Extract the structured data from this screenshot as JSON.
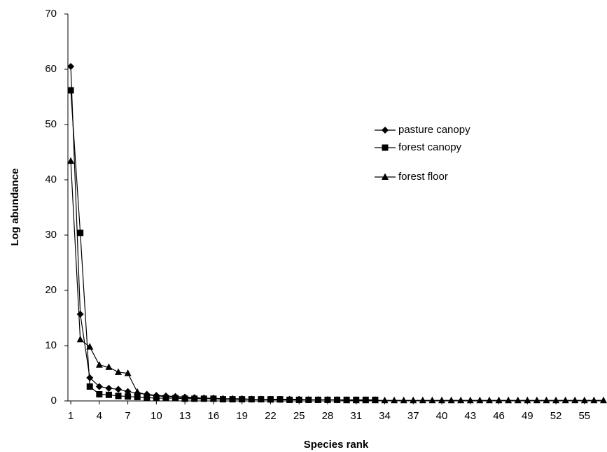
{
  "chart_data": {
    "type": "line",
    "x_label": "Species rank",
    "y_label": "Log abundance",
    "x": [
      1,
      2,
      3,
      4,
      5,
      6,
      7,
      8,
      9,
      10,
      11,
      12,
      13,
      14,
      15,
      16,
      17,
      18,
      19,
      20,
      21,
      22,
      23,
      24,
      25,
      26,
      27,
      28,
      29,
      30,
      31,
      32,
      33,
      34,
      35,
      36,
      37,
      38,
      39,
      40,
      41,
      42,
      43,
      44,
      45,
      46,
      47,
      48,
      49,
      50,
      51,
      52,
      53,
      54,
      55,
      56,
      57
    ],
    "xlim": [
      0.7,
      57
    ],
    "xticks": [
      1,
      4,
      7,
      10,
      13,
      16,
      19,
      22,
      25,
      28,
      31,
      34,
      37,
      40,
      43,
      46,
      49,
      52,
      55
    ],
    "ylim": [
      0,
      70
    ],
    "yticks": [
      0,
      10,
      20,
      30,
      40,
      50,
      60,
      70
    ],
    "legend": "upper-right",
    "series": [
      {
        "name": "pasture canopy",
        "color": "#000000",
        "marker": "diamond",
        "values": [
          60.5,
          15.7,
          4.2,
          2.6,
          2.3,
          2.1,
          1.7,
          1.4,
          1.2,
          1.0,
          0.9,
          0.8,
          0.7,
          0.6,
          0.5,
          0.5,
          0.4,
          0.4,
          0.4,
          0.3,
          0.3,
          0.3,
          0.3,
          0.3,
          0.3,
          0.2,
          0.2,
          0.2,
          0.2,
          0.2,
          0.2,
          0.2,
          0.2,
          null,
          null,
          null,
          null,
          null,
          null,
          null,
          null,
          null,
          null,
          null,
          null,
          null,
          null,
          null,
          null,
          null,
          null,
          null,
          null,
          null,
          null,
          null,
          null
        ]
      },
      {
        "name": "forest canopy",
        "color": "#000000",
        "marker": "square",
        "values": [
          56.2,
          30.4,
          2.6,
          1.2,
          1.1,
          0.9,
          0.8,
          0.7,
          0.6,
          0.5,
          0.5,
          0.5,
          0.4,
          0.4,
          0.4,
          0.4,
          0.3,
          0.3,
          0.3,
          0.3,
          0.3,
          0.3,
          0.3,
          0.2,
          0.2,
          0.2,
          0.2,
          0.2,
          0.2,
          0.2,
          0.2,
          0.2,
          0.2,
          null,
          null,
          null,
          null,
          null,
          null,
          null,
          null,
          null,
          null,
          null,
          null,
          null,
          null,
          null,
          null,
          null,
          null,
          null,
          null,
          null,
          null,
          null,
          null
        ]
      },
      {
        "name": "forest floor",
        "color": "#000000",
        "marker": "triangle",
        "values": [
          43.4,
          11.1,
          9.8,
          6.5,
          6.1,
          5.2,
          5.0,
          1.6,
          1.1,
          0.9,
          0.8,
          0.7,
          0.6,
          0.5,
          0.5,
          0.4,
          0.4,
          0.3,
          0.3,
          0.3,
          0.3,
          0.2,
          0.2,
          0.2,
          0.2,
          0.2,
          0.2,
          0.2,
          0.2,
          0.1,
          0.1,
          0.1,
          0.1,
          0.1,
          0.1,
          0.1,
          0.1,
          0.1,
          0.1,
          0.1,
          0.1,
          0.1,
          0.1,
          0.1,
          0.1,
          0.1,
          0.1,
          0.1,
          0.1,
          0.1,
          0.1,
          0.1,
          0.1,
          0.1,
          0.1,
          0.1,
          0.1
        ]
      }
    ]
  }
}
